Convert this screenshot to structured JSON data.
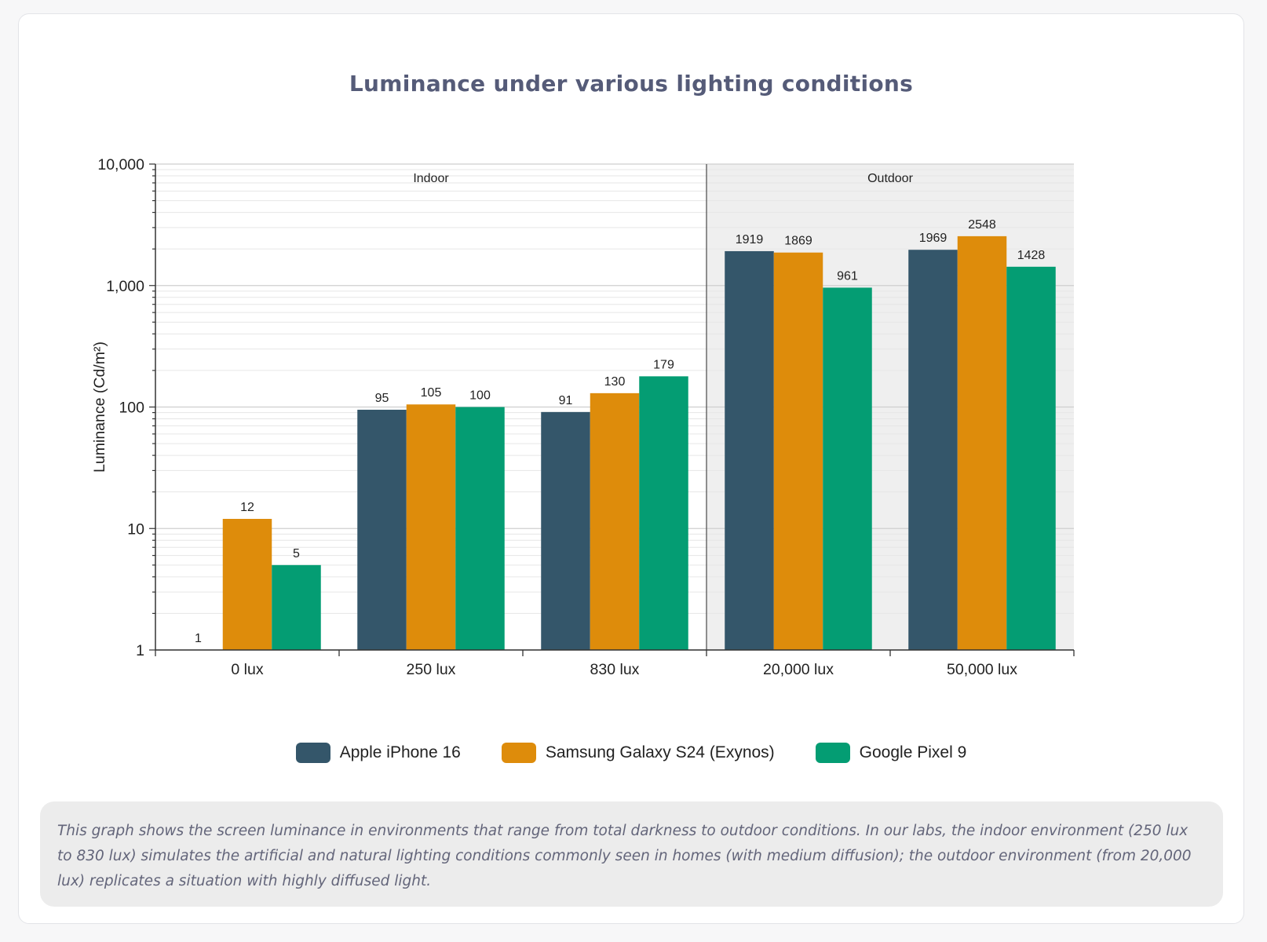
{
  "title": "Luminance under various lighting conditions",
  "chart_data": {
    "type": "bar",
    "scale": "log",
    "ylim": [
      1,
      10000
    ],
    "ylabel": "Luminance (Cd/m²)",
    "yticks": [
      "1",
      "10",
      "100",
      "1,000",
      "10,000"
    ],
    "categories": [
      "0 lux",
      "250 lux",
      "830 lux",
      "20,000 lux",
      "50,000 lux"
    ],
    "series": [
      {
        "name": "Apple iPhone 16",
        "color": "#34566a",
        "values": [
          1,
          95,
          91,
          1919,
          1969
        ]
      },
      {
        "name": "Samsung Galaxy S24 (Exynos)",
        "color": "#de8c0b",
        "values": [
          12,
          105,
          130,
          1869,
          2548
        ]
      },
      {
        "name": "Google Pixel 9",
        "color": "#049d73",
        "values": [
          5,
          100,
          179,
          961,
          1428
        ]
      }
    ],
    "regions": [
      {
        "label": "Indoor",
        "categories": [
          "0 lux",
          "250 lux",
          "830 lux"
        ],
        "shaded": false
      },
      {
        "label": "Outdoor",
        "categories": [
          "20,000 lux",
          "50,000 lux"
        ],
        "shaded": true
      }
    ],
    "grid": true,
    "legend": "bottom"
  },
  "note": "This graph shows the screen luminance in environments that range from total darkness to outdoor conditions. In our labs, the indoor environment (250 lux to 830 lux) simulates the artificial and natural lighting conditions commonly seen in homes (with medium diffusion); the outdoor environment (from 20,000 lux) replicates a situation with highly diffused light."
}
